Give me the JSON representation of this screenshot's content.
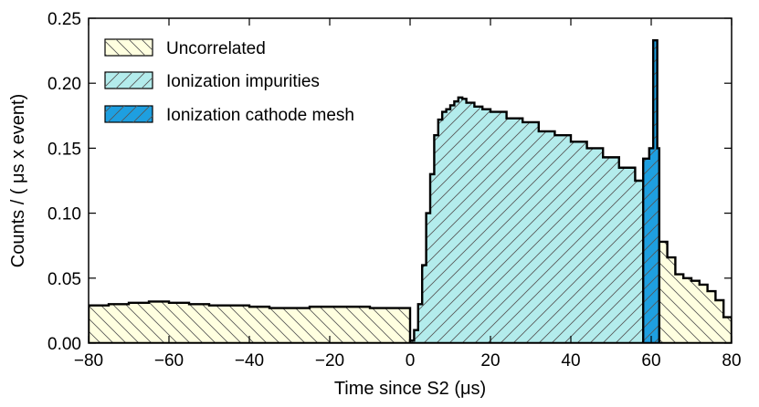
{
  "chart_data": {
    "type": "histogram",
    "title": "",
    "xlabel": "Time since S2 (μs)",
    "ylabel": "Counts / ( μs x event)",
    "xlim": [
      -80,
      80
    ],
    "ylim": [
      0,
      0.25
    ],
    "xticks": [
      -80,
      -60,
      -40,
      -20,
      0,
      20,
      40,
      60,
      80
    ],
    "xtick_labels": [
      "−80",
      "−60",
      "−40",
      "−20",
      "0",
      "20",
      "40",
      "60",
      "80"
    ],
    "yticks": [
      0,
      0.05,
      0.1,
      0.15,
      0.2,
      0.25
    ],
    "ytick_labels": [
      "0.00",
      "0.05",
      "0.10",
      "0.15",
      "0.20",
      "0.25"
    ],
    "legend_position": "top-left",
    "series": [
      {
        "name": "Uncorrelated",
        "color": "#ffffe0",
        "hatch": "back-diagonal",
        "points": [
          [
            -80,
            0.029
          ],
          [
            -75,
            0.03
          ],
          [
            -70,
            0.031
          ],
          [
            -65,
            0.032
          ],
          [
            -60,
            0.031
          ],
          [
            -55,
            0.03
          ],
          [
            -50,
            0.029
          ],
          [
            -45,
            0.029
          ],
          [
            -40,
            0.028
          ],
          [
            -35,
            0.027
          ],
          [
            -30,
            0.027
          ],
          [
            -25,
            0.028
          ],
          [
            -20,
            0.028
          ],
          [
            -15,
            0.028
          ],
          [
            -10,
            0.027
          ],
          [
            -5,
            0.027
          ],
          [
            -2,
            0.027
          ]
        ],
        "tail_points": [
          [
            62,
            0.078
          ],
          [
            64,
            0.066
          ],
          [
            66,
            0.053
          ],
          [
            68,
            0.05
          ],
          [
            70,
            0.048
          ],
          [
            72,
            0.045
          ],
          [
            74,
            0.04
          ],
          [
            76,
            0.033
          ],
          [
            78,
            0.02
          ],
          [
            80,
            0.005
          ]
        ]
      },
      {
        "name": "Ionization impurities",
        "color": "#b3ecec",
        "hatch": "forward-diagonal",
        "points": [
          [
            0,
            0.002
          ],
          [
            1,
            0.01
          ],
          [
            2,
            0.03
          ],
          [
            3,
            0.06
          ],
          [
            4,
            0.1
          ],
          [
            5,
            0.13
          ],
          [
            6,
            0.16
          ],
          [
            7,
            0.172
          ],
          [
            8,
            0.178
          ],
          [
            9,
            0.18
          ],
          [
            10,
            0.183
          ],
          [
            11,
            0.186
          ],
          [
            12,
            0.189
          ],
          [
            13,
            0.188
          ],
          [
            14,
            0.185
          ],
          [
            16,
            0.182
          ],
          [
            18,
            0.18
          ],
          [
            20,
            0.178
          ],
          [
            24,
            0.173
          ],
          [
            28,
            0.17
          ],
          [
            32,
            0.163
          ],
          [
            36,
            0.16
          ],
          [
            40,
            0.155
          ],
          [
            44,
            0.15
          ],
          [
            48,
            0.143
          ],
          [
            52,
            0.135
          ],
          [
            56,
            0.125
          ],
          [
            58,
            0.12
          ]
        ]
      },
      {
        "name": "Ionization cathode mesh",
        "color": "#1e9fe0",
        "hatch": "forward-diagonal",
        "points": [
          [
            58,
            0.142
          ],
          [
            59.5,
            0.15
          ],
          [
            60.5,
            0.233
          ],
          [
            61.5,
            0.15
          ],
          [
            62,
            0.078
          ]
        ]
      }
    ]
  }
}
